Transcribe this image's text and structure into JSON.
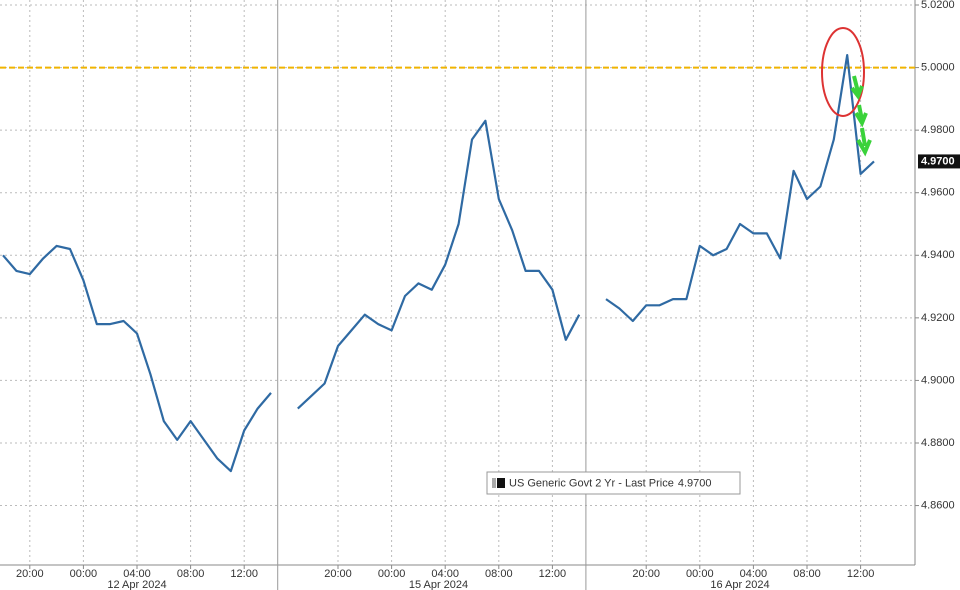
{
  "chart_data": {
    "type": "line",
    "categories": [
      null,
      null,
      "20:00",
      null,
      null,
      null,
      "00:00",
      null,
      null,
      null,
      "04:00",
      null,
      null,
      null,
      "08:00",
      null,
      null,
      null,
      "12:00",
      null,
      null,
      null,
      null,
      null,
      null,
      "20:00",
      null,
      null,
      null,
      "00:00",
      null,
      null,
      null,
      "04:00",
      null,
      null,
      null,
      "08:00",
      null,
      null,
      null,
      "12:00",
      null,
      null,
      null,
      null,
      null,
      null,
      "20:00",
      null,
      null,
      null,
      "00:00",
      null,
      null,
      null,
      "04:00",
      null,
      null,
      null,
      "08:00",
      null,
      null,
      null,
      "12:00",
      null
    ],
    "dates": [
      "12 Apr 2024",
      "15 Apr 2024",
      "16 Apr 2024"
    ],
    "series": [
      {
        "name": "US Generic Govt 2 Yr - Last Price",
        "color": "#2f6aa3",
        "values": [
          4.94,
          4.935,
          4.934,
          4.939,
          4.943,
          4.942,
          4.932,
          4.918,
          4.918,
          4.919,
          4.915,
          4.902,
          4.887,
          4.881,
          4.887,
          4.881,
          4.875,
          4.871,
          4.884,
          4.891,
          4.896,
          null,
          4.891,
          4.895,
          4.899,
          4.911,
          4.916,
          4.921,
          4.918,
          4.916,
          4.927,
          4.931,
          4.929,
          4.937,
          4.95,
          4.977,
          4.983,
          4.958,
          4.948,
          4.935,
          4.935,
          4.929,
          4.913,
          4.921,
          null,
          4.926,
          4.923,
          4.919,
          4.924,
          4.924,
          4.926,
          4.926,
          4.943,
          4.94,
          4.942,
          4.95,
          4.947,
          4.947,
          4.939,
          4.967,
          4.958,
          4.962,
          4.977,
          5.004,
          4.966,
          4.97
        ]
      }
    ],
    "last_price": {
      "value": 4.97,
      "label": "4.9700"
    },
    "reference_line": {
      "value": 5.0,
      "color": "#f0b400"
    },
    "ylim": [
      4.841,
      5.0216
    ],
    "yticks": [
      {
        "value": 4.86,
        "label": "4.8600"
      },
      {
        "value": 4.88,
        "label": "4.8800"
      },
      {
        "value": 4.9,
        "label": "4.9000"
      },
      {
        "value": 4.92,
        "label": "4.9200"
      },
      {
        "value": 4.94,
        "label": "4.9400"
      },
      {
        "value": 4.96,
        "label": "4.9600"
      },
      {
        "value": 4.98,
        "label": "4.9800"
      },
      {
        "value": 5.0,
        "label": "5.0000"
      },
      {
        "value": 5.02,
        "label": "5.0200"
      }
    ],
    "grid": true
  }
}
